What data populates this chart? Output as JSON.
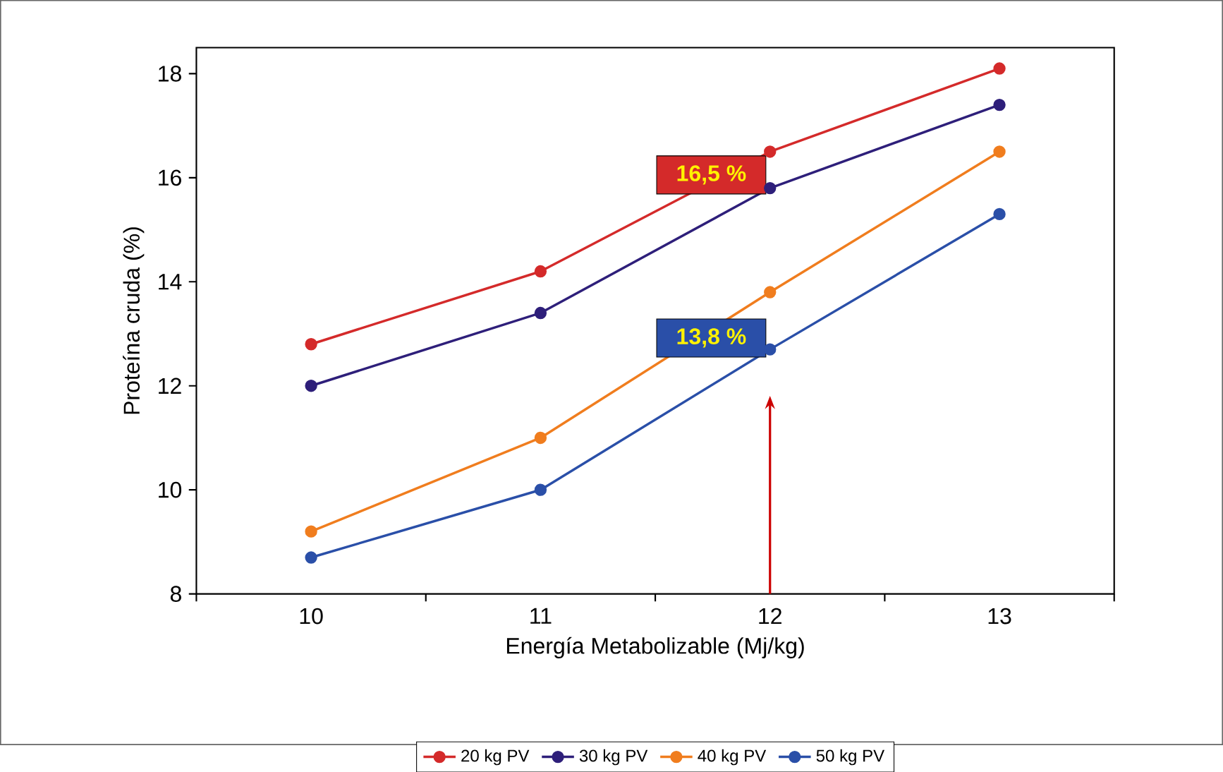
{
  "chart_data": {
    "type": "line",
    "xlabel": "Energía Metabolizable (Mj/kg)",
    "ylabel": "Proteína cruda (%)",
    "categories": [
      "10",
      "11",
      "12",
      "13"
    ],
    "series": [
      {
        "name": "20 kg PV",
        "color": "#d42a2a",
        "values": [
          12.8,
          14.2,
          16.5,
          18.1
        ]
      },
      {
        "name": "30 kg PV",
        "color": "#2e1f7a",
        "values": [
          12.0,
          13.4,
          15.8,
          17.4
        ]
      },
      {
        "name": "40 kg PV",
        "color": "#f07d1e",
        "values": [
          9.2,
          11.0,
          13.8,
          16.5
        ]
      },
      {
        "name": "50 kg PV",
        "color": "#2a4fa8",
        "values": [
          8.7,
          10.0,
          12.7,
          15.3
        ]
      }
    ],
    "ylim": [
      8,
      18.5
    ],
    "yticks": [
      8,
      10,
      12,
      14,
      16,
      18
    ],
    "annotations": [
      {
        "text": "16,5 %",
        "x": "12",
        "y": 16.5
      },
      {
        "text": "13,8 %",
        "x": "12",
        "y": 13.8
      }
    ],
    "legend": "bottom",
    "marker": "circle",
    "line_style": "solid"
  }
}
